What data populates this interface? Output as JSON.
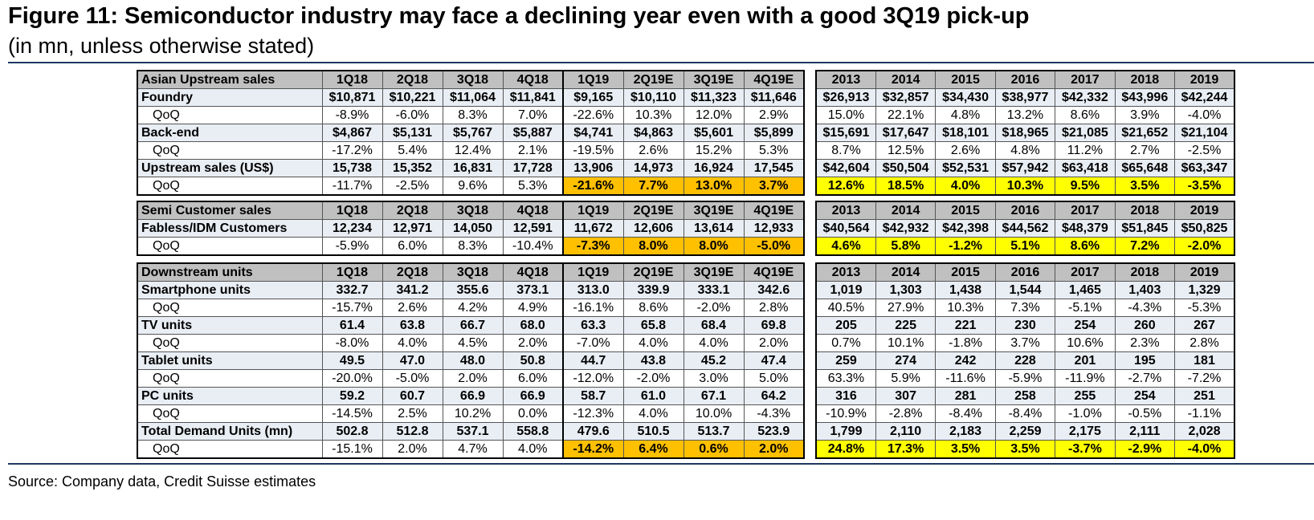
{
  "title": "Figure 11: Semiconductor industry may face a declining year even with a good 3Q19 pick-up",
  "subtitle": "(in mn, unless otherwise stated)",
  "source": "Source: Company data, Credit Suisse estimates",
  "sections": [
    {
      "header": {
        "label": "Asian Upstream sales",
        "quarters": [
          "1Q18",
          "2Q18",
          "3Q18",
          "4Q18",
          "1Q19",
          "2Q19E",
          "3Q19E",
          "4Q19E"
        ],
        "annual": [
          "2013",
          "2014",
          "2015",
          "2016",
          "2017",
          "2018",
          "2019"
        ]
      },
      "items": [
        {
          "label": "Foundry",
          "quarters": [
            "$10,871",
            "$10,221",
            "$11,064",
            "$11,841",
            "$9,165",
            "$10,110",
            "$11,323",
            "$11,646"
          ],
          "annual": [
            "$26,913",
            "$32,857",
            "$34,430",
            "$38,977",
            "$42,332",
            "$43,996",
            "$42,244"
          ],
          "qoq": {
            "label": "QoQ",
            "quarters": [
              "-8.9%",
              "-6.0%",
              "8.3%",
              "7.0%",
              "-22.6%",
              "10.3%",
              "12.0%",
              "2.9%"
            ],
            "annual": [
              "15.0%",
              "22.1%",
              "4.8%",
              "13.2%",
              "8.6%",
              "3.9%",
              "-4.0%"
            ]
          }
        },
        {
          "label": "Back-end",
          "quarters": [
            "$4,867",
            "$5,131",
            "$5,767",
            "$5,887",
            "$4,741",
            "$4,863",
            "$5,601",
            "$5,899"
          ],
          "annual": [
            "$15,691",
            "$17,647",
            "$18,101",
            "$18,965",
            "$21,085",
            "$21,652",
            "$21,104"
          ],
          "qoq": {
            "label": "QoQ",
            "quarters": [
              "-17.2%",
              "5.4%",
              "12.4%",
              "2.1%",
              "-19.5%",
              "2.6%",
              "15.2%",
              "5.3%"
            ],
            "annual": [
              "8.7%",
              "12.5%",
              "2.6%",
              "4.8%",
              "11.2%",
              "2.7%",
              "-2.5%"
            ]
          }
        },
        {
          "label": "Upstream sales (US$)",
          "quarters": [
            "15,738",
            "15,352",
            "16,831",
            "17,728",
            "13,906",
            "14,973",
            "16,924",
            "17,545"
          ],
          "annual": [
            "$42,604",
            "$50,504",
            "$52,531",
            "$57,942",
            "$63,418",
            "$65,648",
            "$63,347"
          ],
          "qoq": {
            "label": "QoQ",
            "quarters": [
              "-11.7%",
              "-2.5%",
              "9.6%",
              "5.3%",
              "-21.6%",
              "7.7%",
              "13.0%",
              "3.7%"
            ],
            "annual": [
              "12.6%",
              "18.5%",
              "4.0%",
              "10.3%",
              "9.5%",
              "3.5%",
              "-3.5%"
            ],
            "highlight": true
          }
        }
      ]
    },
    {
      "header": {
        "label": "Semi Customer sales",
        "quarters": [
          "1Q18",
          "2Q18",
          "3Q18",
          "4Q18",
          "1Q19",
          "2Q19E",
          "3Q19E",
          "4Q19E"
        ],
        "annual": [
          "2013",
          "2014",
          "2015",
          "2016",
          "2017",
          "2018",
          "2019"
        ]
      },
      "items": [
        {
          "label": "Fabless/IDM Customers",
          "quarters": [
            "12,234",
            "12,971",
            "14,050",
            "12,591",
            "11,672",
            "12,606",
            "13,614",
            "12,933"
          ],
          "annual": [
            "$40,564",
            "$42,932",
            "$42,398",
            "$44,562",
            "$48,379",
            "$51,845",
            "$50,825"
          ],
          "qoq": {
            "label": "QoQ",
            "quarters": [
              "-5.9%",
              "6.0%",
              "8.3%",
              "-10.4%",
              "-7.3%",
              "8.0%",
              "8.0%",
              "-5.0%"
            ],
            "annual": [
              "4.6%",
              "5.8%",
              "-1.2%",
              "5.1%",
              "8.6%",
              "7.2%",
              "-2.0%"
            ],
            "highlight": true
          }
        }
      ]
    },
    {
      "header": {
        "label": "Downstream units",
        "quarters": [
          "1Q18",
          "2Q18",
          "3Q18",
          "4Q18",
          "1Q19",
          "2Q19E",
          "3Q19E",
          "4Q19E"
        ],
        "annual": [
          "2013",
          "2014",
          "2015",
          "2016",
          "2017",
          "2018",
          "2019"
        ]
      },
      "items": [
        {
          "label": "Smartphone units",
          "quarters": [
            "332.7",
            "341.2",
            "355.6",
            "373.1",
            "313.0",
            "339.9",
            "333.1",
            "342.6"
          ],
          "annual": [
            "1,019",
            "1,303",
            "1,438",
            "1,544",
            "1,465",
            "1,403",
            "1,329"
          ],
          "qoq": {
            "label": "QoQ",
            "quarters": [
              "-15.7%",
              "2.6%",
              "4.2%",
              "4.9%",
              "-16.1%",
              "8.6%",
              "-2.0%",
              "2.8%"
            ],
            "annual": [
              "40.5%",
              "27.9%",
              "10.3%",
              "7.3%",
              "-5.1%",
              "-4.3%",
              "-5.3%"
            ]
          }
        },
        {
          "label": "TV units",
          "quarters": [
            "61.4",
            "63.8",
            "66.7",
            "68.0",
            "63.3",
            "65.8",
            "68.4",
            "69.8"
          ],
          "annual": [
            "205",
            "225",
            "221",
            "230",
            "254",
            "260",
            "267"
          ],
          "qoq": {
            "label": "QoQ",
            "quarters": [
              "-8.0%",
              "4.0%",
              "4.5%",
              "2.0%",
              "-7.0%",
              "4.0%",
              "4.0%",
              "2.0%"
            ],
            "annual": [
              "0.7%",
              "10.1%",
              "-1.8%",
              "3.7%",
              "10.6%",
              "2.3%",
              "2.8%"
            ]
          }
        },
        {
          "label": "Tablet units",
          "quarters": [
            "49.5",
            "47.0",
            "48.0",
            "50.8",
            "44.7",
            "43.8",
            "45.2",
            "47.4"
          ],
          "annual": [
            "259",
            "274",
            "242",
            "228",
            "201",
            "195",
            "181"
          ],
          "qoq": {
            "label": "QoQ",
            "quarters": [
              "-20.0%",
              "-5.0%",
              "2.0%",
              "6.0%",
              "-12.0%",
              "-2.0%",
              "3.0%",
              "5.0%"
            ],
            "annual": [
              "63.3%",
              "5.9%",
              "-11.6%",
              "-5.9%",
              "-11.9%",
              "-2.7%",
              "-7.2%"
            ]
          }
        },
        {
          "label": "PC units",
          "quarters": [
            "59.2",
            "60.7",
            "66.9",
            "66.9",
            "58.7",
            "61.0",
            "67.1",
            "64.2"
          ],
          "annual": [
            "316",
            "307",
            "281",
            "258",
            "255",
            "254",
            "251"
          ],
          "qoq": {
            "label": "QoQ",
            "quarters": [
              "-14.5%",
              "2.5%",
              "10.2%",
              "0.0%",
              "-12.3%",
              "4.0%",
              "10.0%",
              "-4.3%"
            ],
            "annual": [
              "-10.9%",
              "-2.8%",
              "-8.4%",
              "-8.4%",
              "-1.0%",
              "-0.5%",
              "-1.1%"
            ]
          }
        },
        {
          "label": "Total Demand Units (mn)",
          "quarters": [
            "502.8",
            "512.8",
            "537.1",
            "558.8",
            "479.6",
            "510.5",
            "513.7",
            "523.9"
          ],
          "annual": [
            "1,799",
            "2,110",
            "2,183",
            "2,259",
            "2,175",
            "2,111",
            "2,028"
          ],
          "qoq": {
            "label": "QoQ",
            "quarters": [
              "-15.1%",
              "2.0%",
              "4.7%",
              "4.0%",
              "-14.2%",
              "6.4%",
              "0.6%",
              "2.0%"
            ],
            "annual": [
              "24.8%",
              "17.3%",
              "3.5%",
              "3.5%",
              "-3.7%",
              "-2.9%",
              "-4.0%"
            ],
            "highlight": true
          }
        }
      ]
    }
  ]
}
